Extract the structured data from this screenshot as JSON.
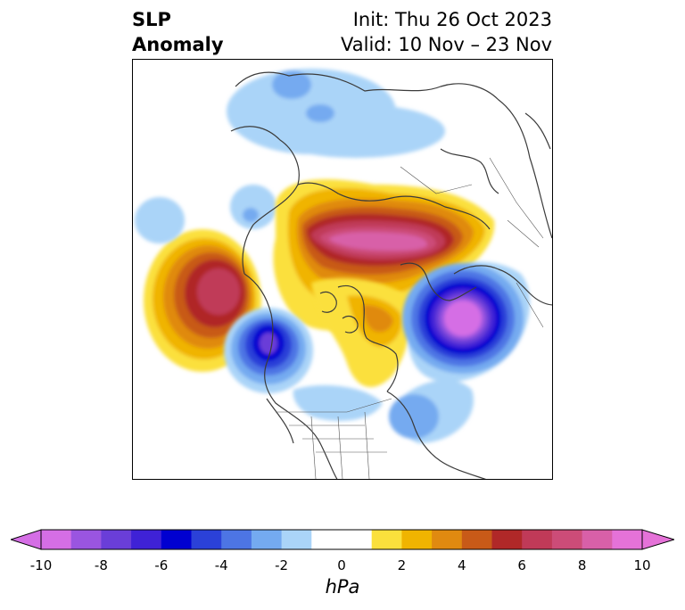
{
  "title": {
    "left_line1": "SLP",
    "left_line2": "Anomaly",
    "right_line1": "Init: Thu 26 Oct 2023",
    "right_line2": "Valid: 10 Nov – 23 Nov"
  },
  "map": {
    "projection": "north-polar stereographic",
    "variable": "sea level pressure anomaly",
    "features": [
      {
        "name": "positive-anomaly-arctic-siberia",
        "peak": 10
      },
      {
        "name": "positive-anomaly-north-pacific",
        "peak": 7
      },
      {
        "name": "negative-anomaly-gulf-of-alaska",
        "peak": -7
      },
      {
        "name": "negative-anomaly-north-atlantic-europe",
        "peak": -10
      },
      {
        "name": "positive-anomaly-hudson-bay-greenland",
        "peak": 4
      }
    ]
  },
  "colorbar": {
    "unit": "hPa",
    "ticks": [
      "-10",
      "-8",
      "-6",
      "-4",
      "-2",
      "0",
      "2",
      "4",
      "6",
      "8",
      "10"
    ],
    "min": -10,
    "max": 10,
    "extend": "both",
    "colors": [
      "#d56ee5",
      "#9a55e0",
      "#6a3ed8",
      "#3f22d6",
      "#0000d0",
      "#2b41d8",
      "#4d75e4",
      "#74aaf0",
      "#aad4f8",
      "#ffffff",
      "#ffffff",
      "#fbe03c",
      "#f0b400",
      "#e08a10",
      "#c85a18",
      "#b02828",
      "#c03a58",
      "#cc4c78",
      "#d860a8",
      "#e572d8"
    ]
  }
}
